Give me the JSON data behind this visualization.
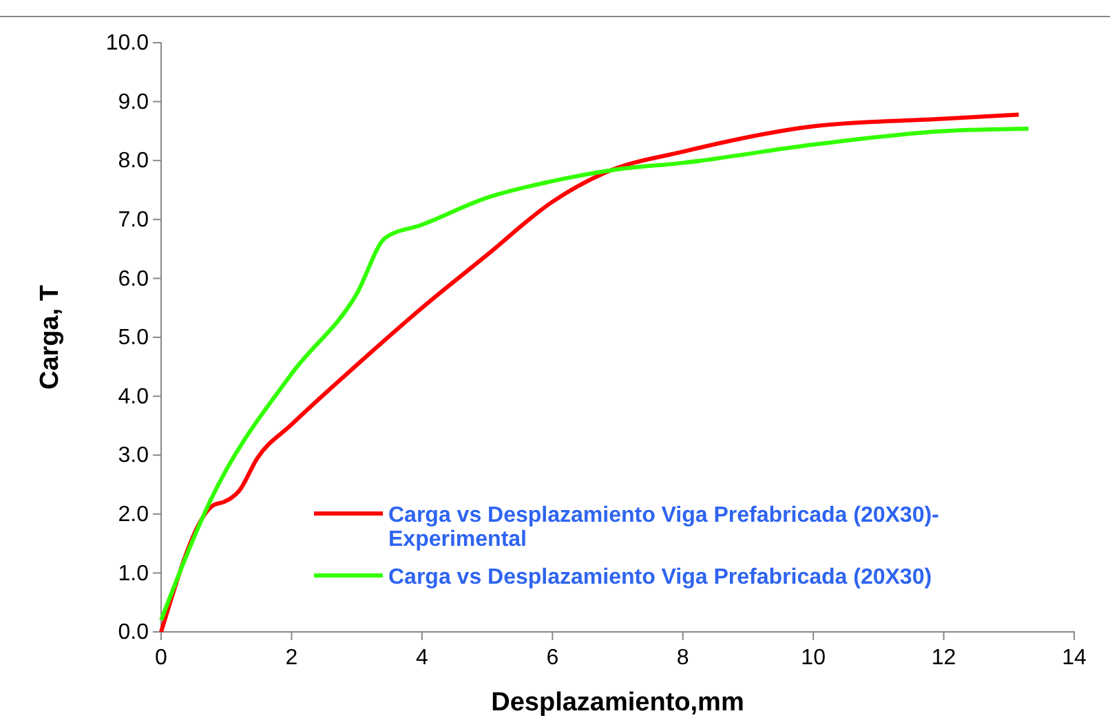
{
  "chart_data": {
    "type": "line",
    "xlabel": "Desplazamiento,mm",
    "ylabel": "Carga, T",
    "xlim": [
      0,
      14
    ],
    "xticks": [
      0,
      2,
      4,
      6,
      8,
      10,
      12,
      14
    ],
    "ylim": [
      0,
      10
    ],
    "yticks": [
      {
        "value": 0,
        "label": "0.0"
      },
      {
        "value": 1,
        "label": "1.0"
      },
      {
        "value": 2,
        "label": "2.0"
      },
      {
        "value": 3,
        "label": "3.0"
      },
      {
        "value": 4,
        "label": "4.0"
      },
      {
        "value": 5,
        "label": "5.0"
      },
      {
        "value": 6,
        "label": "6.0"
      },
      {
        "value": 7,
        "label": "7.0"
      },
      {
        "value": 8,
        "label": "8.0"
      },
      {
        "value": 9,
        "label": "9.0"
      },
      {
        "value": 10,
        "label": "10.0"
      }
    ],
    "grid": false,
    "legend": "bottom right",
    "marker": "none",
    "line_style": "solid",
    "series": [
      {
        "name": "Carga vs Desplazamiento Viga Prefabricada (20X30)-Experimental",
        "color": "#ff0000",
        "x": [
          0,
          0.8,
          0.97,
          1.2,
          1.47,
          2,
          3,
          4,
          5,
          6,
          6.82,
          8,
          10,
          12,
          13.15
        ],
        "values": [
          0,
          2.15,
          2.21,
          2.4,
          2.94,
          3.52,
          4.53,
          5.5,
          6.4,
          7.3,
          7.8,
          8.15,
          8.58,
          8.71,
          8.78
        ]
      },
      {
        "name": "Carga vs Desplazamiento Viga Prefabricada (20X30)",
        "color": "#33ff00",
        "x": [
          0,
          0.76,
          2,
          3,
          3.44,
          4,
          5,
          6,
          7,
          8,
          10,
          12,
          13.3
        ],
        "values": [
          0.2,
          2.24,
          4.38,
          5.74,
          6.69,
          6.91,
          7.37,
          7.65,
          7.85,
          7.96,
          8.27,
          8.5,
          8.54
        ]
      }
    ]
  }
}
